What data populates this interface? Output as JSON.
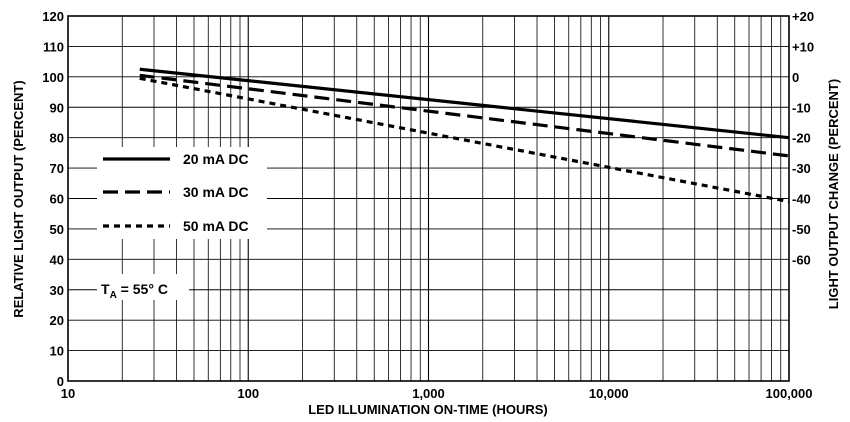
{
  "chart_data": {
    "type": "line",
    "xlabel": "LED ILLUMINATION ON-TIME (HOURS)",
    "ylabel": "RELATIVE LIGHT OUTPUT (PERCENT)",
    "y2label": "LIGHT OUTPUT CHANGE (PERCENT)",
    "xscale": "log",
    "xlim": [
      10,
      100000
    ],
    "ylim": [
      0,
      120
    ],
    "grid": true,
    "x_ticks": [
      10,
      100,
      1000,
      10000,
      100000
    ],
    "x_tick_labels": [
      "10",
      "100",
      "1,000",
      "10,000",
      "100,000"
    ],
    "y_ticks": [
      0,
      10,
      20,
      30,
      40,
      50,
      60,
      70,
      80,
      90,
      100,
      110,
      120
    ],
    "y_tick_labels": [
      "0",
      "10",
      "20",
      "30",
      "40",
      "50",
      "60",
      "70",
      "80",
      "90",
      "100",
      "110",
      "120"
    ],
    "y2_ticks": [
      {
        "value": 120,
        "label": "+20"
      },
      {
        "value": 110,
        "label": "+10"
      },
      {
        "value": 100,
        "label": "0"
      },
      {
        "value": 90,
        "label": "-10"
      },
      {
        "value": 80,
        "label": "-20"
      },
      {
        "value": 70,
        "label": "-30"
      },
      {
        "value": 60,
        "label": "-40"
      },
      {
        "value": 50,
        "label": "-50"
      },
      {
        "value": 40,
        "label": "-60"
      }
    ],
    "legend_placement": "center-left",
    "series": [
      {
        "name": "20 mA DC",
        "style": "solid",
        "x": [
          25,
          100000
        ],
        "y": [
          102.5,
          80
        ]
      },
      {
        "name": "30 mA DC",
        "style": "dashed",
        "x": [
          25,
          100000
        ],
        "y": [
          100.5,
          74
        ]
      },
      {
        "name": "50 mA DC",
        "style": "dotted",
        "x": [
          25,
          100000
        ],
        "y": [
          99.5,
          59
        ]
      }
    ],
    "annotation": {
      "main": "T",
      "sub": "A",
      "rest": " = 55° C"
    },
    "colors": {
      "line": "#000000",
      "grid": "#000000",
      "background": "#ffffff"
    }
  }
}
